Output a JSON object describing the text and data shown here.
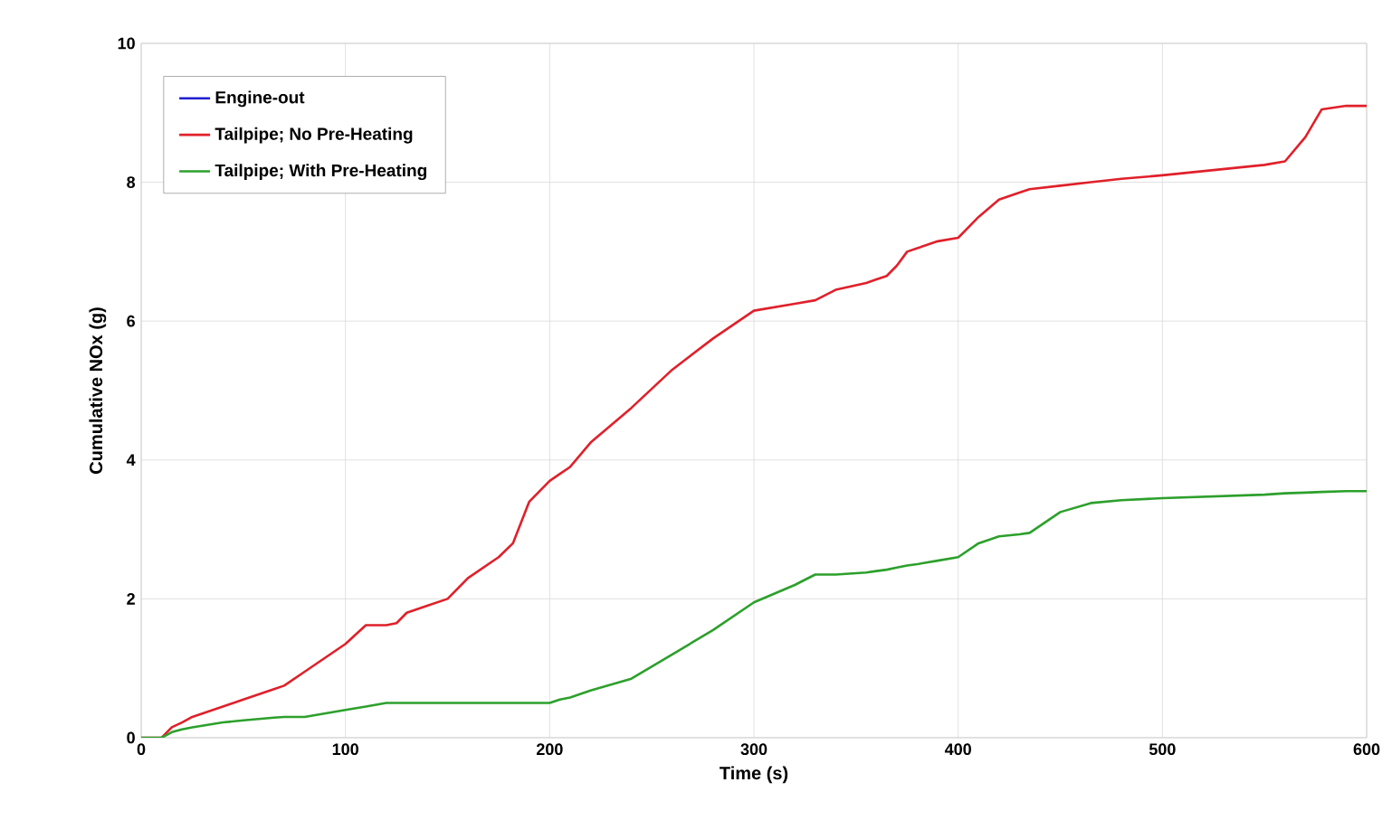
{
  "chart_data": {
    "type": "line",
    "xlabel": "Time (s)",
    "ylabel": "Cumulative NOx (g)",
    "xlim": [
      0,
      600
    ],
    "ylim": [
      0,
      10
    ],
    "xticks": [
      0,
      100,
      200,
      300,
      400,
      500,
      600
    ],
    "yticks": [
      0,
      2,
      4,
      6,
      8,
      10
    ],
    "grid": true,
    "legend": "top left",
    "marker": "none",
    "line_style": "solid",
    "x": [
      0,
      10,
      15,
      20,
      25,
      40,
      50,
      65,
      70,
      80,
      100,
      110,
      120,
      125,
      130,
      140,
      150,
      160,
      175,
      182,
      190,
      200,
      205,
      210,
      220,
      240,
      260,
      280,
      300,
      320,
      330,
      340,
      355,
      360,
      365,
      370,
      375,
      380,
      390,
      400,
      410,
      420,
      430,
      435,
      450,
      465,
      480,
      500,
      550,
      560,
      570,
      578,
      590,
      600
    ],
    "series": [
      {
        "name": "Engine-out",
        "color": "#1f1fd0",
        "values": [
          null,
          null,
          null,
          null,
          null,
          null,
          null,
          null,
          null,
          null,
          null,
          null,
          null,
          null,
          null,
          null,
          null,
          null,
          null,
          null,
          null,
          null,
          null,
          null,
          null,
          null,
          null,
          null,
          null,
          null,
          null,
          null,
          null,
          null,
          null,
          null,
          null,
          null,
          null,
          null,
          null,
          null,
          null,
          null,
          null,
          null,
          null,
          null,
          null,
          null,
          null,
          null,
          null,
          null
        ]
      },
      {
        "name": "Tailpipe; No Pre-Heating",
        "color": "#e0202a",
        "values": [
          0,
          0,
          0.15,
          0.22,
          0.3,
          0.45,
          0.55,
          0.7,
          0.75,
          0.95,
          1.35,
          1.62,
          1.62,
          1.65,
          1.8,
          1.9,
          2.0,
          2.3,
          2.6,
          2.8,
          3.4,
          3.7,
          3.8,
          3.9,
          4.25,
          4.75,
          5.3,
          5.75,
          6.15,
          6.25,
          6.3,
          6.45,
          6.55,
          6.6,
          6.65,
          6.8,
          7.0,
          7.05,
          7.15,
          7.2,
          7.5,
          7.75,
          7.85,
          7.9,
          7.95,
          8.0,
          8.05,
          8.1,
          8.25,
          8.3,
          8.65,
          9.05,
          9.1,
          9.1
        ]
      },
      {
        "name": "Tailpipe; With Pre-Heating",
        "color": "#2ca02c",
        "values": [
          0,
          0,
          0.08,
          0.12,
          0.15,
          0.22,
          0.25,
          0.29,
          0.3,
          0.3,
          0.4,
          0.45,
          0.5,
          0.5,
          0.5,
          0.5,
          0.5,
          0.5,
          0.5,
          0.5,
          0.5,
          0.5,
          0.55,
          0.58,
          0.68,
          0.85,
          1.2,
          1.55,
          1.95,
          2.2,
          2.35,
          2.35,
          2.38,
          2.4,
          2.42,
          2.45,
          2.48,
          2.5,
          2.55,
          2.6,
          2.8,
          2.9,
          2.93,
          2.95,
          3.25,
          3.38,
          3.42,
          3.45,
          3.5,
          3.52,
          3.53,
          3.54,
          3.55,
          3.55
        ]
      }
    ]
  }
}
